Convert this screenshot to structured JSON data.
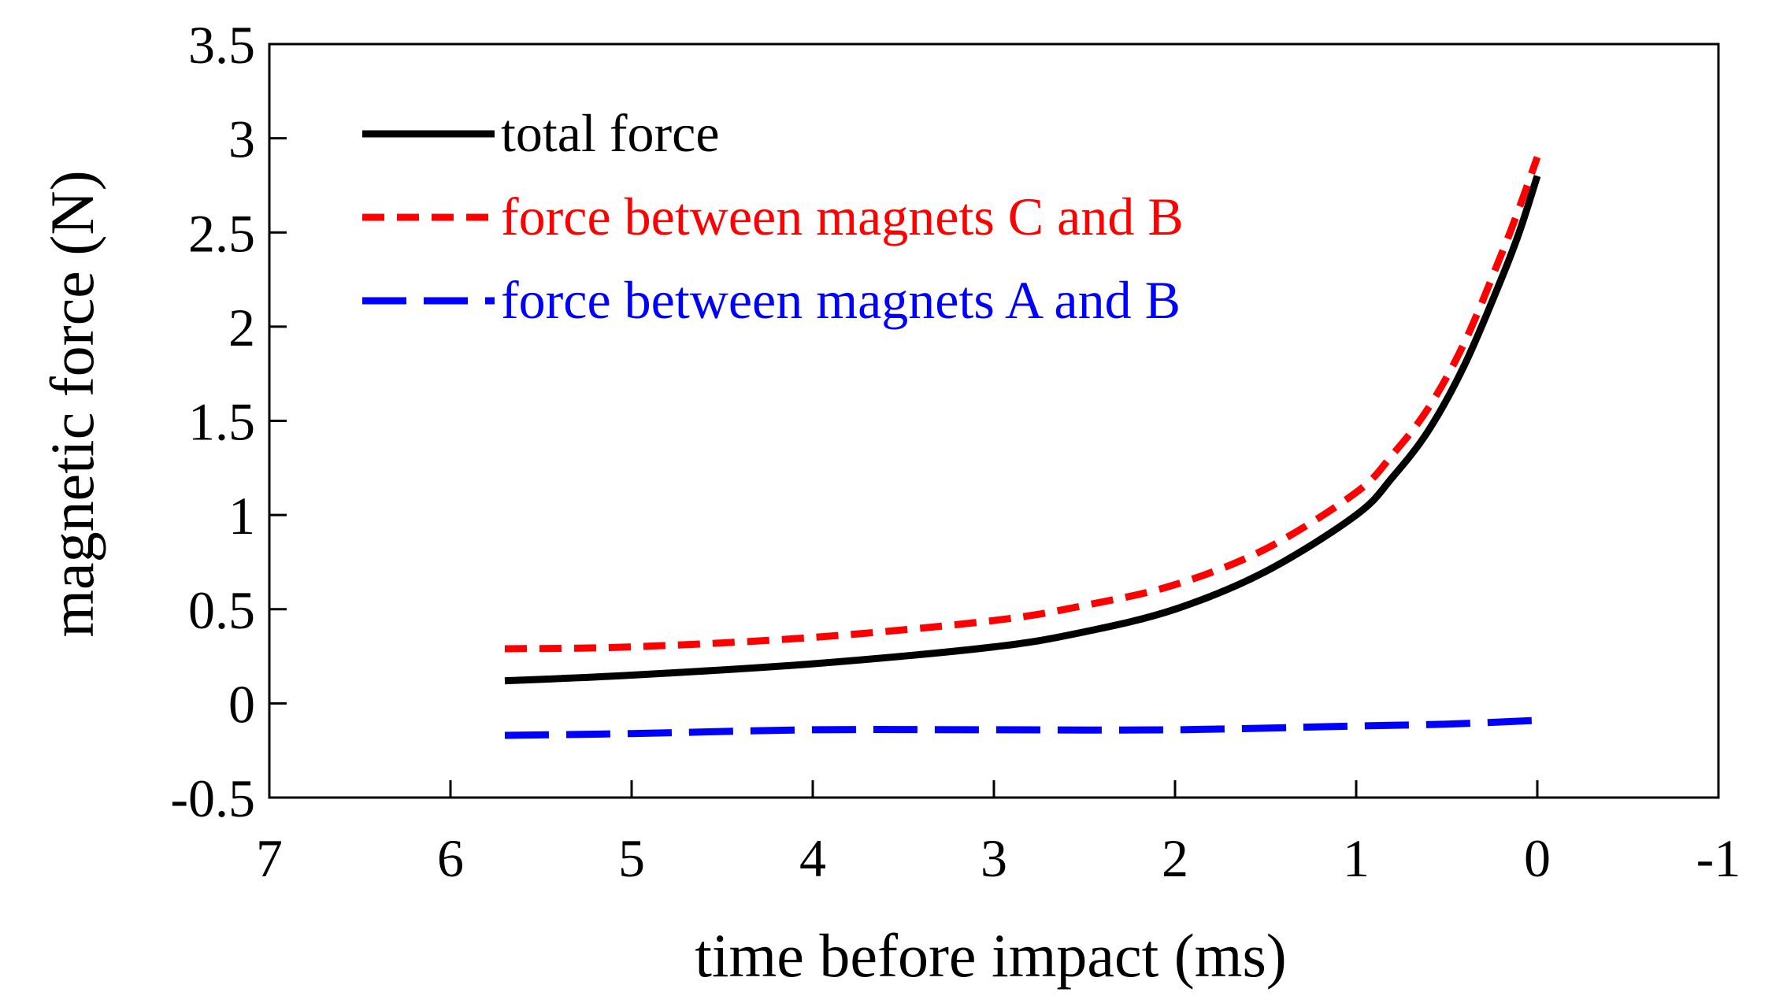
{
  "chart_data": {
    "type": "line",
    "title": "",
    "xlabel": "time before impact (ms)",
    "ylabel": "magnetic force (N)",
    "xlim": [
      7,
      -1
    ],
    "ylim": [
      -0.5,
      3.5
    ],
    "xticks": [
      7,
      6,
      5,
      4,
      3,
      2,
      1,
      0,
      -1
    ],
    "xtick_labels": [
      "7",
      "6",
      "5",
      "4",
      "3",
      "2",
      "1",
      "0",
      "-1"
    ],
    "yticks": [
      3.5,
      3,
      2.5,
      2,
      1.5,
      1,
      0.5,
      0,
      -0.5
    ],
    "ytick_labels": [
      "3.5",
      "3",
      "2.5",
      "2",
      "1.5",
      "1",
      "0.5",
      "0",
      "-0.5"
    ],
    "grid": false,
    "legend_position": "top-left",
    "series": [
      {
        "name": "total force",
        "color": "#000000",
        "dash": "solid",
        "x": [
          5.7,
          5.0,
          4.0,
          3.0,
          2.5,
          2.0,
          1.5,
          1.0,
          0.8,
          0.6,
          0.4,
          0.2,
          0.1,
          0.0
        ],
        "y": [
          0.12,
          0.15,
          0.21,
          0.3,
          0.38,
          0.5,
          0.7,
          1.0,
          1.2,
          1.45,
          1.8,
          2.25,
          2.5,
          2.8
        ]
      },
      {
        "name": "force between magnets C and B",
        "color": "#ff0000",
        "dash": "short-dash",
        "x": [
          5.7,
          5.0,
          4.0,
          3.0,
          2.5,
          2.0,
          1.5,
          1.0,
          0.8,
          0.6,
          0.4,
          0.2,
          0.1,
          0.0
        ],
        "y": [
          0.29,
          0.3,
          0.35,
          0.44,
          0.52,
          0.63,
          0.82,
          1.12,
          1.32,
          1.57,
          1.92,
          2.38,
          2.63,
          2.9
        ]
      },
      {
        "name": "force between magnets A and B",
        "color": "#0000ff",
        "dash": "long-dash",
        "x": [
          5.7,
          5.0,
          4.0,
          3.0,
          2.0,
          1.0,
          0.5,
          0.0
        ],
        "y": [
          -0.17,
          -0.16,
          -0.14,
          -0.14,
          -0.14,
          -0.12,
          -0.11,
          -0.09
        ]
      }
    ]
  }
}
